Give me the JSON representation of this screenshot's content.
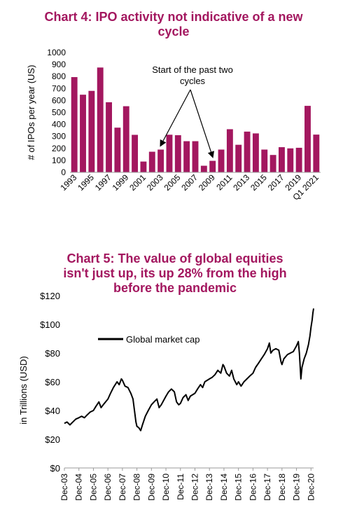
{
  "chart_data": [
    {
      "type": "bar",
      "title": "Chart 4: IPO activity not indicative of a new cycle",
      "ylabel": "# of IPOs per year (US)",
      "xlabel": "",
      "ylim": [
        0,
        1000
      ],
      "yticks": [
        0,
        100,
        200,
        300,
        400,
        500,
        600,
        700,
        800,
        900,
        1000
      ],
      "grid": false,
      "bar_color": "#a3175f",
      "categories": [
        "1993",
        "1994",
        "1995",
        "1996",
        "1997",
        "1998",
        "1999",
        "2000",
        "2001",
        "2002",
        "2003",
        "2004",
        "2005",
        "2006",
        "2007",
        "2008",
        "2009",
        "2010",
        "2011",
        "2012",
        "2013",
        "2014",
        "2015",
        "2016",
        "2017",
        "2018",
        "2019",
        "2020",
        "Q1 2021"
      ],
      "tick_labels": [
        "1993",
        "1995",
        "1997",
        "1999",
        "2001",
        "2003",
        "2005",
        "2007",
        "2009",
        "2011",
        "2013",
        "2015",
        "2017",
        "2019",
        "Q1 2021"
      ],
      "values": [
        795,
        648,
        680,
        875,
        585,
        373,
        552,
        313,
        90,
        172,
        190,
        314,
        310,
        260,
        260,
        55,
        96,
        190,
        360,
        230,
        340,
        325,
        190,
        145,
        210,
        200,
        205,
        555,
        315
      ],
      "annotation": {
        "text_line1": "Start of the past two",
        "text_line2": "cycles",
        "targets": [
          "2003",
          "2009"
        ]
      }
    },
    {
      "type": "line",
      "title": "Chart 5: The value of global equities isn't just up, its up 28% from the high before the pandemic",
      "title_lines": [
        "Chart 5: The value of global equities",
        "isn't just up, its up 28% from the high",
        "before the pandemic"
      ],
      "ylabel": "in Trillions (USD)",
      "xlabel": "",
      "ylim": [
        0,
        120
      ],
      "yticks": [
        "$0",
        "$20",
        "$40",
        "$60",
        "$80",
        "$100",
        "$120"
      ],
      "grid": false,
      "x_tick_labels": [
        "Dec-03",
        "Dec-04",
        "Dec-05",
        "Dec-06",
        "Dec-07",
        "Dec-08",
        "Dec-09",
        "Dec-10",
        "Dec-11",
        "Dec-12",
        "Dec-13",
        "Dec-14",
        "Dec-15",
        "Dec-16",
        "Dec-17",
        "Dec-18",
        "Dec-19",
        "Dec-20"
      ],
      "xlim": [
        2003.92,
        2021.1
      ],
      "legend": {
        "position": "top-left",
        "entry": "Global market cap"
      },
      "series": [
        {
          "name": "Global market cap",
          "color": "#000000",
          "points": [
            [
              2003.92,
              31
            ],
            [
              2004.1,
              32
            ],
            [
              2004.3,
              30
            ],
            [
              2004.5,
              32
            ],
            [
              2004.7,
              34
            ],
            [
              2004.92,
              35
            ],
            [
              2005.1,
              36
            ],
            [
              2005.3,
              35
            ],
            [
              2005.5,
              37
            ],
            [
              2005.7,
              39
            ],
            [
              2005.92,
              40
            ],
            [
              2006.1,
              43
            ],
            [
              2006.3,
              46
            ],
            [
              2006.45,
              42
            ],
            [
              2006.6,
              44
            ],
            [
              2006.92,
              48
            ],
            [
              2007.1,
              52
            ],
            [
              2007.3,
              56
            ],
            [
              2007.55,
              60
            ],
            [
              2007.7,
              58
            ],
            [
              2007.85,
              62
            ],
            [
              2007.92,
              61
            ],
            [
              2008.1,
              57
            ],
            [
              2008.3,
              56
            ],
            [
              2008.5,
              52
            ],
            [
              2008.65,
              48
            ],
            [
              2008.75,
              40
            ],
            [
              2008.85,
              32
            ],
            [
              2008.92,
              29
            ],
            [
              2009.05,
              28
            ],
            [
              2009.18,
              26
            ],
            [
              2009.3,
              30
            ],
            [
              2009.5,
              36
            ],
            [
              2009.7,
              40
            ],
            [
              2009.92,
              44
            ],
            [
              2010.1,
              46
            ],
            [
              2010.3,
              48
            ],
            [
              2010.45,
              42
            ],
            [
              2010.6,
              44
            ],
            [
              2010.92,
              50
            ],
            [
              2011.1,
              53
            ],
            [
              2011.3,
              55
            ],
            [
              2011.5,
              53
            ],
            [
              2011.65,
              46
            ],
            [
              2011.8,
              44
            ],
            [
              2011.92,
              45
            ],
            [
              2012.1,
              49
            ],
            [
              2012.3,
              51
            ],
            [
              2012.45,
              47
            ],
            [
              2012.6,
              50
            ],
            [
              2012.92,
              52
            ],
            [
              2013.1,
              55
            ],
            [
              2013.3,
              58
            ],
            [
              2013.45,
              56
            ],
            [
              2013.6,
              60
            ],
            [
              2013.92,
              62
            ],
            [
              2014.1,
              63
            ],
            [
              2014.3,
              65
            ],
            [
              2014.5,
              68
            ],
            [
              2014.7,
              66
            ],
            [
              2014.85,
              72
            ],
            [
              2014.92,
              71
            ],
            [
              2015.1,
              66
            ],
            [
              2015.3,
              64
            ],
            [
              2015.45,
              68
            ],
            [
              2015.6,
              62
            ],
            [
              2015.8,
              58
            ],
            [
              2015.92,
              60
            ],
            [
              2016.1,
              57
            ],
            [
              2016.3,
              60
            ],
            [
              2016.5,
              62
            ],
            [
              2016.7,
              64
            ],
            [
              2016.92,
              66
            ],
            [
              2017.1,
              70
            ],
            [
              2017.3,
              73
            ],
            [
              2017.5,
              76
            ],
            [
              2017.7,
              79
            ],
            [
              2017.92,
              83
            ],
            [
              2018.05,
              87
            ],
            [
              2018.15,
              80
            ],
            [
              2018.3,
              82
            ],
            [
              2018.5,
              83
            ],
            [
              2018.7,
              82
            ],
            [
              2018.85,
              74
            ],
            [
              2018.92,
              72
            ],
            [
              2019.05,
              76
            ],
            [
              2019.3,
              79
            ],
            [
              2019.5,
              80
            ],
            [
              2019.7,
              81
            ],
            [
              2019.92,
              85
            ],
            [
              2020.05,
              88
            ],
            [
              2020.12,
              80
            ],
            [
              2020.18,
              70
            ],
            [
              2020.22,
              62
            ],
            [
              2020.3,
              70
            ],
            [
              2020.45,
              76
            ],
            [
              2020.6,
              80
            ],
            [
              2020.75,
              86
            ],
            [
              2020.85,
              92
            ],
            [
              2020.92,
              98
            ],
            [
              2021.0,
              103
            ],
            [
              2021.05,
              108
            ],
            [
              2021.1,
              111
            ]
          ]
        }
      ]
    }
  ]
}
